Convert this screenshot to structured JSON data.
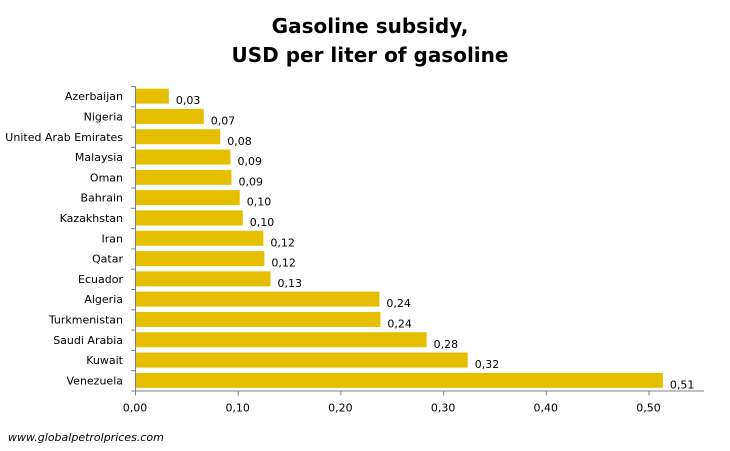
{
  "title_line1": "Gasoline subsidy,",
  "title_line2": "USD per liter of gasoline",
  "footer": "www.globalpetrolprices.com",
  "chart_data": {
    "type": "bar",
    "orientation": "horizontal",
    "categories": [
      "Azerbaijan",
      "Nigeria",
      "United Arab Emirates",
      "Malaysia",
      "Oman",
      "Bahrain",
      "Kazakhstan",
      "Iran",
      "Qatar",
      "Ecuador",
      "Algeria",
      "Turkmenistan",
      "Saudi Arabia",
      "Kuwait",
      "Venezuela"
    ],
    "values": [
      0.03,
      0.07,
      0.08,
      0.09,
      0.09,
      0.1,
      0.1,
      0.12,
      0.12,
      0.13,
      0.24,
      0.24,
      0.28,
      0.32,
      0.51
    ],
    "value_labels": [
      "0,03",
      "0,07",
      "0,08",
      "0,09",
      "0,09",
      "0,10",
      "0,10",
      "0,12",
      "0,12",
      "0,13",
      "0,24",
      "0,24",
      "0,28",
      "0,32",
      "0,51"
    ],
    "bar_lengths": [
      0.032,
      0.066,
      0.082,
      0.092,
      0.093,
      0.101,
      0.104,
      0.124,
      0.125,
      0.131,
      0.237,
      0.238,
      0.283,
      0.323,
      0.513
    ],
    "xticks": [
      "0,00",
      "0,10",
      "0,20",
      "0,30",
      "0,40",
      "0,50"
    ],
    "xlim": [
      0,
      0.55
    ],
    "bar_color": "#E6BE00",
    "grid": false,
    "legend": "none",
    "xlabel": "",
    "ylabel": ""
  }
}
